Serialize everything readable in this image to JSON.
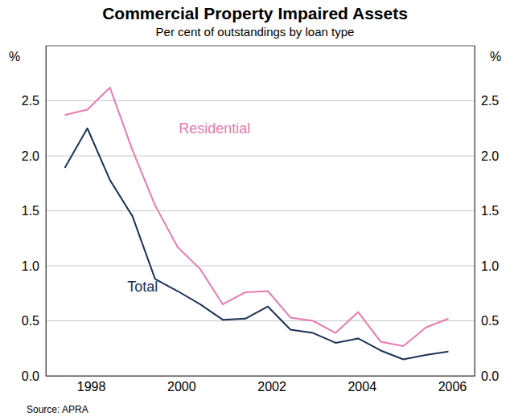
{
  "chart_data": {
    "type": "line",
    "title": "Commercial Property Impaired Assets",
    "subtitle": "Per cent of outstandings by loan type",
    "y_label": "%",
    "source": "Source: APRA",
    "x": [
      1997.92,
      1998.42,
      1998.92,
      1999.42,
      1999.92,
      2000.42,
      2000.92,
      2001.42,
      2001.92,
      2002.42,
      2002.92,
      2003.42,
      2003.92,
      2004.42,
      2004.92,
      2005.42,
      2005.92,
      2006.42
    ],
    "xlim": [
      1997.5,
      2007
    ],
    "xticks": [
      {
        "value": 1998.5,
        "label": "1998"
      },
      {
        "value": 2000.5,
        "label": "2000"
      },
      {
        "value": 2002.5,
        "label": "2002"
      },
      {
        "value": 2004.5,
        "label": "2004"
      },
      {
        "value": 2006.5,
        "label": "2006"
      }
    ],
    "ylim": [
      0,
      3
    ],
    "yticks": [
      {
        "value": 0,
        "label": "0.0"
      },
      0.5,
      {
        "value": 1,
        "label": "1.0"
      },
      1.5,
      {
        "value": 2,
        "label": "2.0"
      },
      2.5
    ],
    "grid": true,
    "series": [
      {
        "name": "Residential",
        "color": "#e87bb0",
        "values": [
          2.37,
          2.42,
          2.62,
          2.05,
          1.55,
          1.17,
          0.97,
          0.65,
          0.76,
          0.77,
          0.53,
          0.5,
          0.39,
          0.58,
          0.31,
          0.27,
          0.44,
          0.52
        ]
      },
      {
        "name": "Total",
        "color": "#1c3355",
        "values": [
          1.89,
          2.25,
          1.78,
          1.45,
          0.88,
          0.77,
          0.65,
          0.51,
          0.52,
          0.63,
          0.42,
          0.39,
          0.3,
          0.34,
          0.23,
          0.15,
          0.19,
          0.22
        ]
      }
    ]
  }
}
